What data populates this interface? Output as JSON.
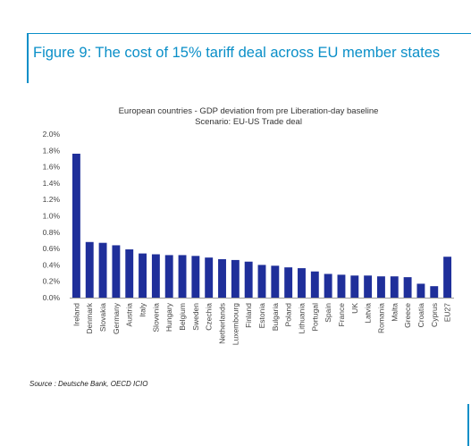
{
  "figure": {
    "title": "Figure 9: The cost of 15% tariff deal across EU member states",
    "source": "Source : Deutsche Bank, OECD ICIO"
  },
  "colors": {
    "accent": "#0a8fc8",
    "bar": "#1f2f9a"
  },
  "chart_data": {
    "type": "bar",
    "subtitle_line1": "European countries - GDP deviation from pre Liberation-day baseline",
    "subtitle_line2": "Scenario: EU-US Trade deal",
    "xlabel": "",
    "ylabel": "",
    "ylim": [
      0,
      2.0
    ],
    "yticks": [
      "2.0%",
      "1.8%",
      "1.6%",
      "1.4%",
      "1.2%",
      "1.0%",
      "0.8%",
      "0.6%",
      "0.4%",
      "0.2%",
      "0.0%"
    ],
    "grid": false,
    "categories": [
      "Ireland",
      "Denmark",
      "Slovakia",
      "Germany",
      "Austria",
      "Italy",
      "Slovenia",
      "Hungary",
      "Belgium",
      "Sweden",
      "Czechia",
      "Netherlands",
      "Luxembourg",
      "Finland",
      "Estonia",
      "Bulgaria",
      "Poland",
      "Lithuania",
      "Portugal",
      "Spain",
      "France",
      "UK",
      "Latvia",
      "Romania",
      "Malta",
      "Greece",
      "Croatia",
      "Cyprus",
      "EU27"
    ],
    "values": [
      1.76,
      0.68,
      0.67,
      0.64,
      0.59,
      0.54,
      0.53,
      0.52,
      0.52,
      0.51,
      0.49,
      0.47,
      0.46,
      0.44,
      0.4,
      0.39,
      0.37,
      0.36,
      0.32,
      0.29,
      0.28,
      0.27,
      0.27,
      0.26,
      0.26,
      0.25,
      0.17,
      0.14,
      0.5
    ]
  }
}
